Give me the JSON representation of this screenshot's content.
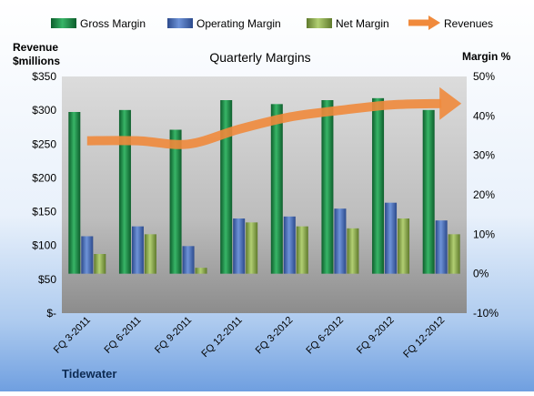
{
  "chart_data": {
    "type": "bar",
    "title": "Quarterly Margins",
    "source": "Tidewater",
    "y_left_label": [
      "Revenue",
      "$millions"
    ],
    "y_right_label": "Margin %",
    "y_left_ticks": [
      "$-",
      "$50",
      "$100",
      "$150",
      "$200",
      "$250",
      "$300",
      "$350"
    ],
    "y_right_ticks": [
      "-10%",
      "0%",
      "10%",
      "20%",
      "30%",
      "40%",
      "50%"
    ],
    "y_left_range": [
      0,
      350
    ],
    "y_right_range": [
      -10,
      50
    ],
    "categories": [
      "FQ 3-2011",
      "FQ 6-2011",
      "FQ 9-2011",
      "FQ 12-2011",
      "FQ 3-2012",
      "FQ 6-2012",
      "FQ 9-2012",
      "FQ 12-2012"
    ],
    "series": [
      {
        "name": "Gross Margin",
        "axis": "right",
        "kind": "bar",
        "color": "#1f8a48",
        "values": [
          41,
          41.5,
          36.5,
          44,
          43,
          44,
          44.5,
          41.5
        ]
      },
      {
        "name": "Operating Margin",
        "axis": "right",
        "kind": "bar",
        "color": "#4a6fbd",
        "values": [
          9.5,
          12,
          7,
          14,
          14.5,
          16.5,
          18,
          13.5
        ]
      },
      {
        "name": "Net Margin",
        "axis": "right",
        "kind": "bar",
        "color": "#8fb04e",
        "values": [
          5,
          10,
          1.5,
          13,
          12,
          11.5,
          14,
          10
        ]
      },
      {
        "name": "Revenues",
        "axis": "left",
        "kind": "line",
        "color": "#f08a3c",
        "values": [
          255,
          255,
          250,
          272,
          290,
          300,
          308,
          310
        ]
      }
    ],
    "legend_position": "top",
    "grid": false
  }
}
